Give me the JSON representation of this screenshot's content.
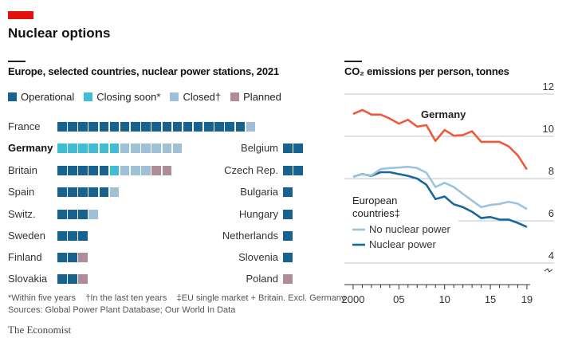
{
  "title": "Nuclear options",
  "colors": {
    "brand": "#e3120b",
    "operational": "#17628f",
    "closing": "#3fbdd4",
    "closed": "#9fc0d6",
    "planned": "#b08c99",
    "germany": "#ee5a3c",
    "no_nuclear": "#9cc4dd",
    "nuclear": "#1a679b"
  },
  "chart_data": [
    {
      "type": "table",
      "subtitle": "Europe, selected countries, nuclear power stations, 2021",
      "legend": [
        {
          "key": "operational",
          "label": "Operational"
        },
        {
          "key": "closing",
          "label": "Closing soon*"
        },
        {
          "key": "closed",
          "label": "Closed†"
        },
        {
          "key": "planned",
          "label": "Planned"
        }
      ],
      "left": [
        {
          "country": "France",
          "operational": 18,
          "closing": 0,
          "closed": 1,
          "planned": 0,
          "bold": false
        },
        {
          "country": "Germany",
          "operational": 0,
          "closing": 6,
          "closed": 6,
          "planned": 0,
          "bold": true
        },
        {
          "country": "Britain",
          "operational": 5,
          "closing": 1,
          "closed": 3,
          "planned": 2,
          "bold": false
        },
        {
          "country": "Spain",
          "operational": 5,
          "closing": 0,
          "closed": 1,
          "planned": 0,
          "bold": false
        },
        {
          "country": "Switz.",
          "operational": 3,
          "closing": 0,
          "closed": 1,
          "planned": 0,
          "bold": false
        },
        {
          "country": "Sweden",
          "operational": 3,
          "closing": 0,
          "closed": 0,
          "planned": 0,
          "bold": false
        },
        {
          "country": "Finland",
          "operational": 2,
          "closing": 0,
          "closed": 0,
          "planned": 1,
          "bold": false
        },
        {
          "country": "Slovakia",
          "operational": 2,
          "closing": 0,
          "closed": 0,
          "planned": 1,
          "bold": false
        }
      ],
      "right": [
        {
          "country": "Belgium",
          "operational": 2,
          "closing": 0,
          "closed": 0,
          "planned": 0
        },
        {
          "country": "Czech Rep.",
          "operational": 2,
          "closing": 0,
          "closed": 0,
          "planned": 0
        },
        {
          "country": "Bulgaria",
          "operational": 1,
          "closing": 0,
          "closed": 0,
          "planned": 0
        },
        {
          "country": "Hungary",
          "operational": 1,
          "closing": 0,
          "closed": 0,
          "planned": 0
        },
        {
          "country": "Netherlands",
          "operational": 1,
          "closing": 0,
          "closed": 0,
          "planned": 0
        },
        {
          "country": "Slovenia",
          "operational": 1,
          "closing": 0,
          "closed": 0,
          "planned": 0
        },
        {
          "country": "Poland",
          "operational": 0,
          "closing": 0,
          "closed": 0,
          "planned": 1
        }
      ]
    },
    {
      "type": "line",
      "subtitle": "CO₂ emissions per person, tonnes",
      "x": [
        2000,
        2001,
        2002,
        2003,
        2004,
        2005,
        2006,
        2007,
        2008,
        2009,
        2010,
        2011,
        2012,
        2013,
        2014,
        2015,
        2016,
        2017,
        2018,
        2019
      ],
      "xtick_values": [
        2000,
        2005,
        2010,
        2015,
        2019
      ],
      "xtick_labels": [
        "2000",
        "05",
        "10",
        "15",
        "19"
      ],
      "ylim": [
        3.5,
        12
      ],
      "yticks": [
        4,
        6,
        8,
        10,
        12
      ],
      "axis_break": true,
      "grid": true,
      "series_group_label": "European countries‡",
      "series": [
        {
          "name": "Germany",
          "key": "germany",
          "values": [
            11.06,
            11.25,
            11.03,
            11.03,
            10.84,
            10.6,
            10.78,
            10.46,
            10.53,
            9.78,
            10.3,
            10.03,
            10.06,
            10.24,
            9.74,
            9.74,
            9.74,
            9.53,
            9.1,
            8.43
          ]
        },
        {
          "name": "No nuclear power",
          "key": "no_nuclear",
          "values": [
            8.1,
            8.2,
            8.15,
            8.45,
            8.5,
            8.52,
            8.56,
            8.5,
            8.28,
            7.6,
            7.8,
            7.6,
            7.28,
            6.96,
            6.65,
            6.75,
            6.8,
            6.9,
            6.81,
            6.56
          ]
        },
        {
          "name": "Nuclear power",
          "key": "nuclear",
          "values": [
            8.09,
            8.21,
            8.13,
            8.3,
            8.3,
            8.21,
            8.13,
            8.0,
            7.71,
            7.03,
            7.15,
            6.78,
            6.65,
            6.43,
            6.13,
            6.18,
            6.06,
            6.06,
            5.9,
            5.71
          ]
        }
      ]
    }
  ],
  "footnotes": {
    "a": "*Within five years",
    "b": "†In the last ten years",
    "c": "‡EU single market + Britain. Excl. Germany",
    "sources": "Sources: Global Power Plant Database; Our World In Data"
  },
  "publisher": "The Economist"
}
